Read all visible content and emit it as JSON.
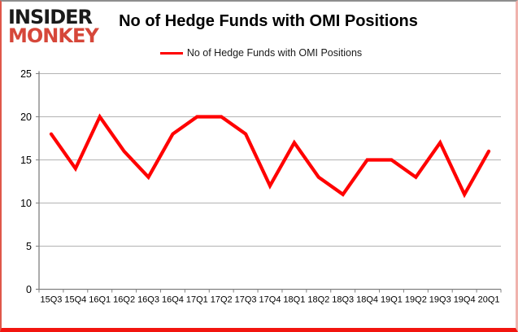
{
  "brand": {
    "line1": "INSIDER",
    "line2": "MONKEY"
  },
  "header": {
    "title": "No of Hedge Funds with OMI Positions"
  },
  "legend": {
    "label": "No of Hedge Funds with OMI Positions"
  },
  "chart_data": {
    "type": "line",
    "title": "No of Hedge Funds with OMI Positions",
    "categories": [
      "15Q3",
      "15Q4",
      "16Q1",
      "16Q2",
      "16Q3",
      "16Q4",
      "17Q1",
      "17Q2",
      "17Q3",
      "17Q4",
      "18Q1",
      "18Q2",
      "18Q3",
      "18Q4",
      "19Q1",
      "19Q2",
      "19Q3",
      "19Q4",
      "20Q1"
    ],
    "series": [
      {
        "name": "No of Hedge Funds with OMI Positions",
        "color": "#ff0000",
        "values": [
          18,
          14,
          20,
          16,
          13,
          18,
          20,
          20,
          18,
          12,
          17,
          13,
          11,
          15,
          15,
          13,
          17,
          11,
          16
        ]
      }
    ],
    "xlabel": "",
    "ylabel": "",
    "ylim": [
      0,
      25
    ],
    "yticks": [
      0,
      5,
      10,
      15,
      20,
      25
    ],
    "grid": true,
    "legend_position": "top"
  },
  "colors": {
    "series_red": "#ff0000",
    "logo_red": "#d6473a",
    "grid_line": "#b3b3b3",
    "axis_line": "#808080",
    "label_text": "#000000",
    "background": "#ffffff"
  }
}
